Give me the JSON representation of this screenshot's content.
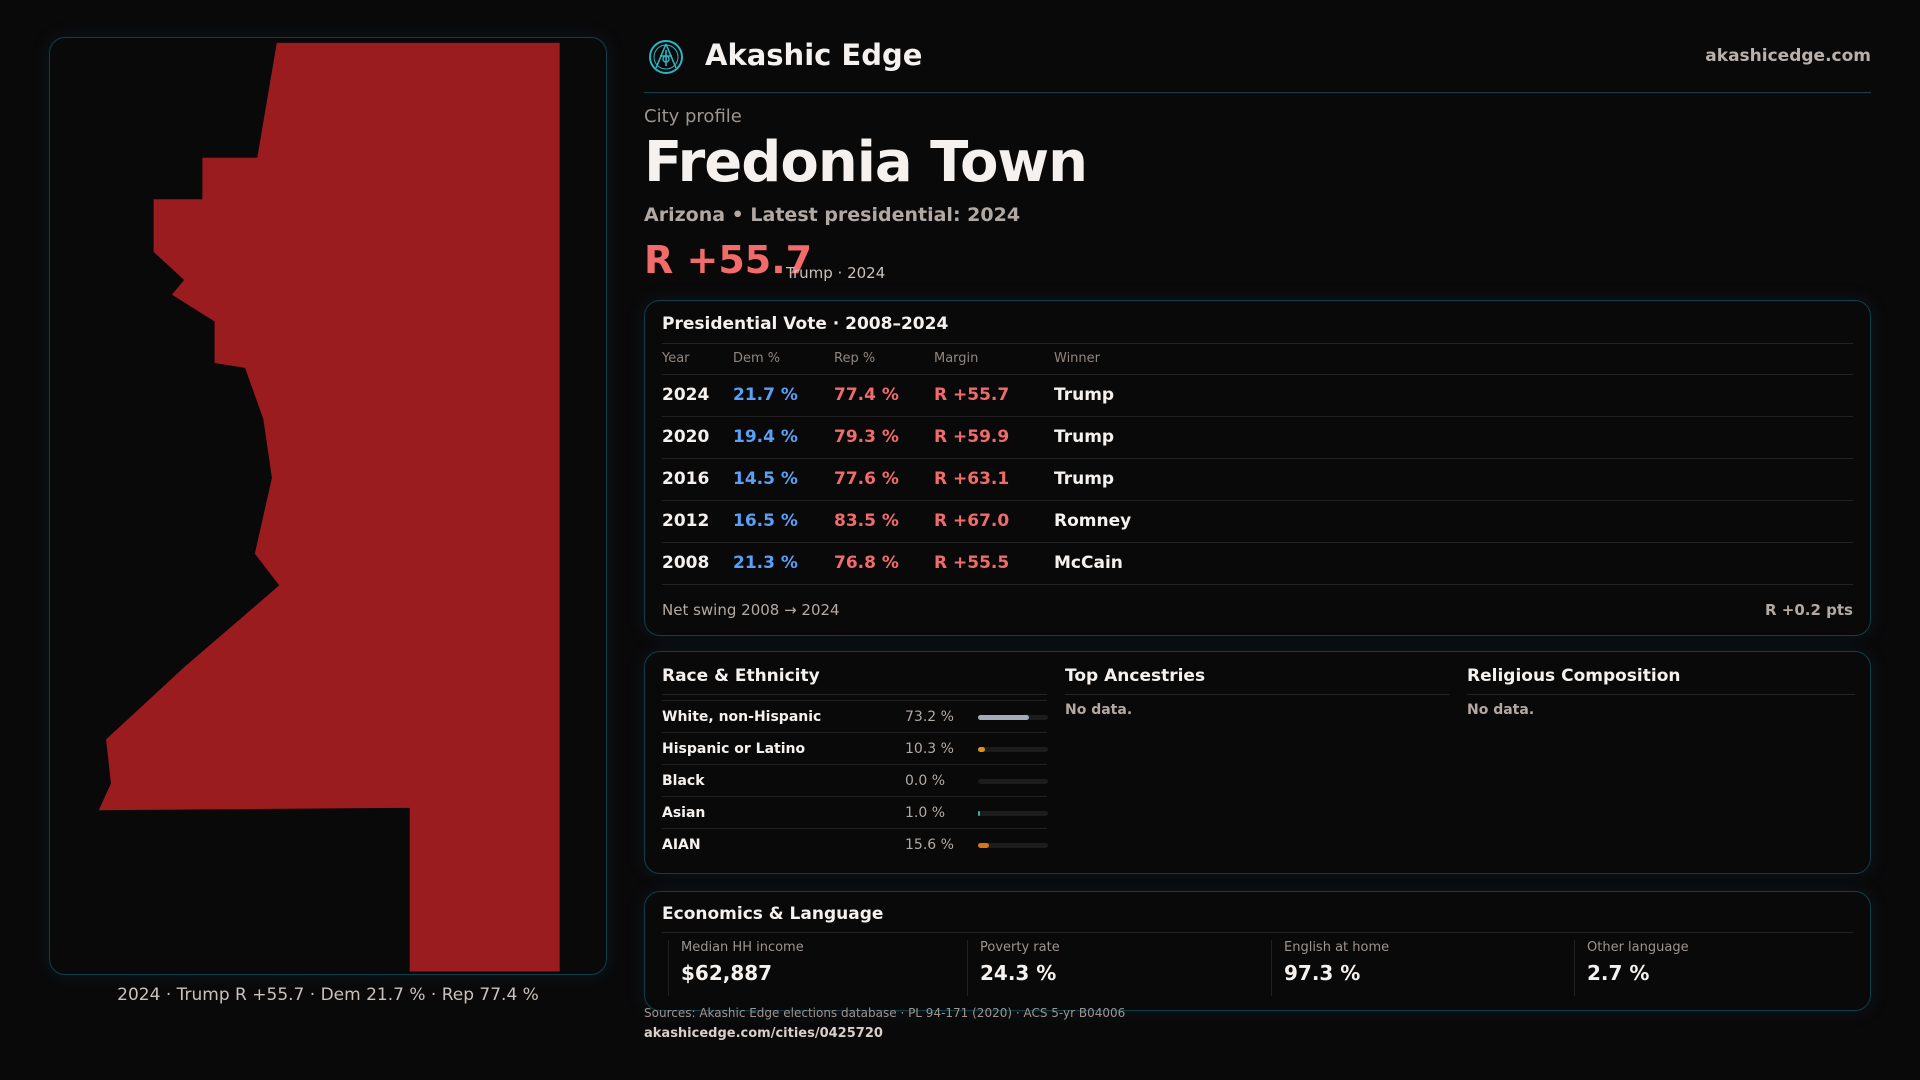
{
  "brand": {
    "name": "Akashic Edge",
    "site": "akashicedge.com",
    "logo_icon": "akashic-emblem-icon",
    "accent": "#2bb5c4"
  },
  "map": {
    "fill": "#9b1c1f",
    "caption": "2024 · Trump R +55.7 · Dem 21.7 % · Rep 77.4 %"
  },
  "header": {
    "kicker": "City profile",
    "title": "Fredonia Town",
    "subtitle": "Arizona • Latest presidential: 2024",
    "margin": "R +55.7",
    "margin_note": "Trump · 2024"
  },
  "vote": {
    "title": "Presidential Vote · 2008–2024",
    "columns": [
      "Year",
      "Dem %",
      "Rep %",
      "Margin",
      "Winner"
    ],
    "rows": [
      [
        "2024",
        "21.7 %",
        "77.4 %",
        "R +55.7",
        "Trump"
      ],
      [
        "2020",
        "19.4 %",
        "79.3 %",
        "R +59.9",
        "Trump"
      ],
      [
        "2016",
        "14.5 %",
        "77.6 %",
        "R +63.1",
        "Trump"
      ],
      [
        "2012",
        "16.5 %",
        "83.5 %",
        "R +67.0",
        "Romney"
      ],
      [
        "2008",
        "21.3 %",
        "76.8 %",
        "R +55.5",
        "McCain"
      ]
    ],
    "swing_label": "Net swing 2008 → 2024",
    "swing_value": "R +0.2 pts"
  },
  "race": {
    "title": "Race & Ethnicity",
    "rows": [
      {
        "label": "White, non-Hispanic",
        "pct": "73.2 %",
        "value": 73.2,
        "color": "#a3abbb"
      },
      {
        "label": "Hispanic or Latino",
        "pct": "10.3 %",
        "value": 10.3,
        "color": "#e0901a"
      },
      {
        "label": "Black",
        "pct": "0.0 %",
        "value": 0.0,
        "color": "#555"
      },
      {
        "label": "Asian",
        "pct": "1.0 %",
        "value": 1.0,
        "color": "#2bb59a"
      },
      {
        "label": "AIAN",
        "pct": "15.6 %",
        "value": 15.6,
        "color": "#d4771a"
      }
    ]
  },
  "ancestries": {
    "title": "Top Ancestries",
    "empty": "No data."
  },
  "religion": {
    "title": "Religious Composition",
    "empty": "No data."
  },
  "econ": {
    "title": "Economics & Language",
    "cells": [
      {
        "label": "Median HH income",
        "value": "$62,887"
      },
      {
        "label": "Poverty rate",
        "value": "24.3 %"
      },
      {
        "label": "English at home",
        "value": "97.3 %"
      },
      {
        "label": "Other language",
        "value": "2.7 %"
      }
    ]
  },
  "footer": {
    "sources": "Sources: Akashic Edge elections database · PL 94-171 (2020) · ACS 5-yr B04006",
    "url": "akashicedge.com/cities/0425720"
  }
}
